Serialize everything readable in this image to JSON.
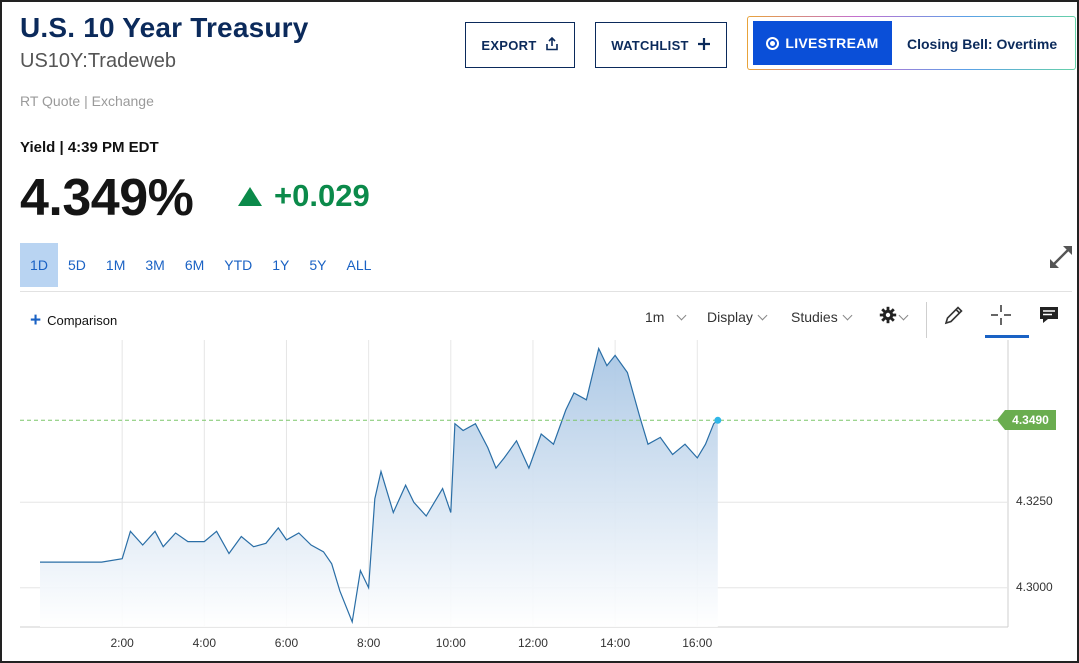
{
  "header": {
    "title": "U.S. 10 Year Treasury",
    "symbol": "US10Y:Tradeweb",
    "quote_type": "RT Quote | Exchange"
  },
  "actions": {
    "export_label": "EXPORT",
    "watchlist_label": "WATCHLIST"
  },
  "livestream": {
    "button_label": "LIVESTREAM",
    "show_name": "Closing Bell: Overtime"
  },
  "quote": {
    "yield_label": "Yield | 4:39 PM EDT",
    "price": "4.349%",
    "change": "+0.029",
    "change_direction": "up",
    "change_color": "#0b8a4a"
  },
  "ranges": {
    "items": [
      "1D",
      "5D",
      "1M",
      "3M",
      "6M",
      "YTD",
      "1Y",
      "5Y",
      "ALL"
    ],
    "active": "1D"
  },
  "toolbar": {
    "comparison_label": "Comparison",
    "interval_label": "1m",
    "display_label": "Display",
    "studies_label": "Studies",
    "icons": [
      "gear-icon",
      "pencil-icon",
      "crosshair-icon",
      "comment-icon"
    ]
  },
  "chart_data": {
    "type": "area",
    "title": "",
    "xlabel": "",
    "ylabel": "",
    "x_ticks": [
      "2:00",
      "4:00",
      "6:00",
      "8:00",
      "10:00",
      "12:00",
      "14:00",
      "16:00"
    ],
    "y_ticks": [
      "4.3000",
      "4.3250"
    ],
    "ylim": [
      4.2885,
      4.3725
    ],
    "xlim_hours": [
      0,
      24
    ],
    "last_price_label": "4.3490",
    "last_price": 4.349,
    "line_color": "#2a6ea6",
    "reference_line_color": "#7cc56a",
    "series": [
      {
        "name": "US10Y",
        "x_hours": [
          0,
          1.5,
          2,
          2.2,
          2.5,
          2.8,
          3.0,
          3.3,
          3.6,
          3.8,
          4.0,
          4.3,
          4.6,
          4.9,
          5.2,
          5.5,
          5.8,
          6.0,
          6.3,
          6.6,
          6.9,
          7.1,
          7.3,
          7.6,
          7.8,
          8.0,
          8.15,
          8.3,
          8.6,
          8.9,
          9.1,
          9.4,
          9.8,
          10.0,
          10.1,
          10.3,
          10.6,
          10.9,
          11.1,
          11.3,
          11.6,
          11.9,
          12.2,
          12.5,
          12.8,
          13.0,
          13.3,
          13.6,
          13.8,
          14.0,
          14.3,
          14.6,
          14.8,
          15.1,
          15.4,
          15.7,
          16.0,
          16.2,
          16.4,
          16.5
        ],
        "values": [
          4.3075,
          4.3075,
          4.3085,
          4.3165,
          4.3125,
          4.3165,
          4.312,
          4.316,
          4.3135,
          4.3135,
          4.3135,
          4.3165,
          4.31,
          4.315,
          4.312,
          4.313,
          4.3175,
          4.314,
          4.316,
          4.3125,
          4.3105,
          4.307,
          4.299,
          4.29,
          4.305,
          4.3,
          4.326,
          4.334,
          4.322,
          4.33,
          4.325,
          4.321,
          4.329,
          4.322,
          4.348,
          4.346,
          4.348,
          4.341,
          4.335,
          4.338,
          4.343,
          4.335,
          4.345,
          4.342,
          4.352,
          4.357,
          4.355,
          4.37,
          4.365,
          4.368,
          4.363,
          4.35,
          4.342,
          4.344,
          4.339,
          4.342,
          4.338,
          4.342,
          4.348,
          4.349
        ]
      }
    ]
  }
}
